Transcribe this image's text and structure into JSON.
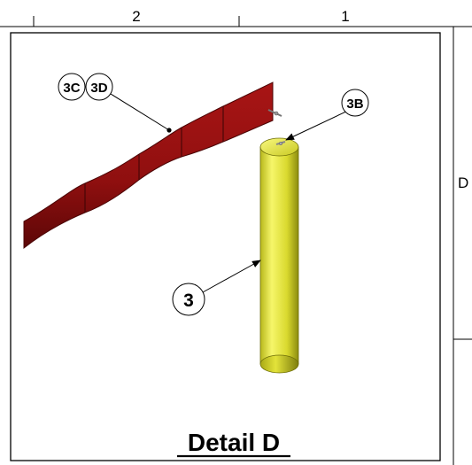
{
  "drawing": {
    "zone_labels": {
      "column_2": "2",
      "column_1": "1",
      "row_d": "D"
    },
    "callouts": {
      "c3c": "3C",
      "c3d": "3D",
      "c3b": "3B",
      "c3": "3"
    },
    "detail_title": "Detail D"
  },
  "colors": {
    "border": "#000000",
    "ribbon_fill": "#8f0f0f",
    "ribbon_dark": "#4a0505",
    "cylinder_light": "#f6f66a",
    "cylinder_mid": "#d9d92e",
    "cylinder_dark": "#8c8c10"
  }
}
